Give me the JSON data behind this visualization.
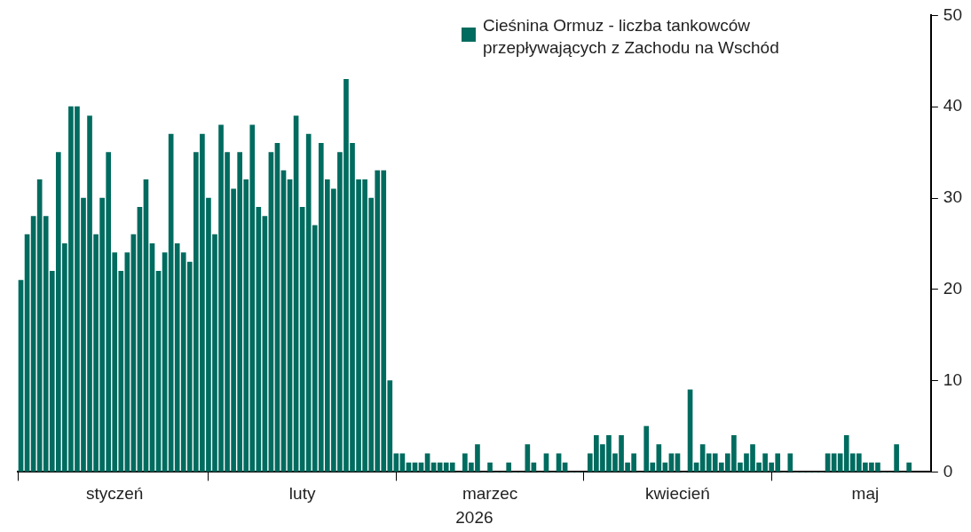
{
  "chart_data": {
    "type": "bar",
    "xlabel": "2026",
    "legend": "top right",
    "categories": [
      null,
      null,
      null,
      null,
      null,
      null,
      null,
      null,
      null,
      null,
      null,
      null,
      null,
      null,
      null,
      "styczeń",
      null,
      null,
      null,
      null,
      null,
      null,
      null,
      null,
      null,
      null,
      null,
      null,
      null,
      null,
      null,
      null,
      null,
      null,
      null,
      null,
      null,
      null,
      null,
      null,
      null,
      null,
      null,
      null,
      null,
      "luty",
      null,
      null,
      null,
      null,
      null,
      null,
      null,
      null,
      null,
      null,
      null,
      null,
      null,
      null,
      null,
      null,
      null,
      null,
      null,
      null,
      null,
      null,
      null,
      null,
      null,
      null,
      null,
      null,
      null,
      "marzec",
      null,
      null,
      null,
      null,
      null,
      null,
      null,
      null,
      null,
      null,
      null,
      null,
      null,
      null,
      null,
      null,
      null,
      null,
      null,
      null,
      null,
      null,
      null,
      null,
      null,
      null,
      null,
      null,
      null,
      "kwiecień",
      null,
      null,
      null,
      null,
      null,
      null,
      null,
      null,
      null,
      null,
      null,
      null,
      null,
      null,
      null,
      null,
      null,
      null,
      null,
      null,
      null,
      null,
      null,
      null,
      null,
      null,
      null,
      null,
      null,
      "maj",
      null,
      null,
      null,
      null,
      null,
      null,
      null
    ],
    "ylim": [
      0,
      50
    ],
    "yticks": [
      0,
      10,
      20,
      30,
      40,
      50
    ],
    "series": [
      {
        "name": "Cieśnina Ormuz - liczba tankowców przepływających z Zachodu na Wschód",
        "color": "#006b5f",
        "values": [
          21,
          26,
          28,
          32,
          28,
          22,
          35,
          25,
          40,
          40,
          30,
          39,
          26,
          30,
          35,
          24,
          22,
          24,
          26,
          29,
          32,
          25,
          22,
          24,
          37,
          25,
          24,
          23,
          35,
          37,
          30,
          26,
          38,
          35,
          31,
          35,
          32,
          38,
          29,
          28,
          35,
          36,
          33,
          32,
          39,
          29,
          37,
          27,
          36,
          32,
          31,
          35,
          43,
          36,
          32,
          32,
          30,
          33,
          33,
          10,
          2,
          2,
          1,
          1,
          1,
          2,
          1,
          1,
          1,
          1,
          0,
          2,
          1,
          3,
          0,
          1,
          0,
          0,
          1,
          0,
          0,
          3,
          1,
          0,
          2,
          0,
          2,
          1,
          0,
          0,
          0,
          2,
          4,
          3,
          4,
          2,
          4,
          1,
          2,
          0,
          5,
          1,
          3,
          1,
          2,
          2,
          0,
          9,
          1,
          3,
          2,
          2,
          1,
          2,
          4,
          1,
          2,
          3,
          1,
          2,
          1,
          2,
          0,
          2,
          0,
          0,
          0,
          0,
          0,
          2,
          2,
          2,
          4,
          2,
          2,
          1,
          1,
          1,
          0,
          0,
          3,
          0,
          1
        ]
      }
    ]
  }
}
